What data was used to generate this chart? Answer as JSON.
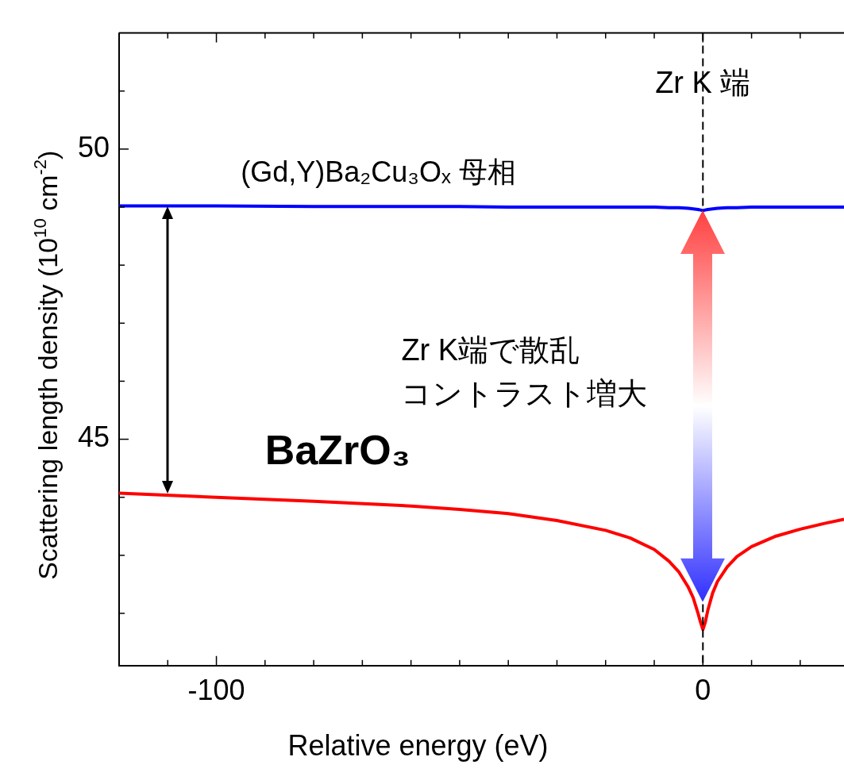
{
  "chart_data": {
    "type": "line",
    "xlabel": "Relative energy (eV)",
    "ylabel": "Scattering length density (10$^{10}$ cm$^{-2}$)",
    "x": [
      -120,
      -100,
      -80,
      -60,
      -50,
      -40,
      -30,
      -20,
      -15,
      -10,
      -7,
      -5,
      -3,
      -2,
      -1,
      -0.5,
      0,
      0.5,
      1,
      2,
      3,
      5,
      7,
      10,
      15,
      20,
      25,
      29
    ],
    "series": [
      {
        "name": "(Gd,Y)Ba₂Cu₃Oₓ 母相",
        "color": "#0000ff",
        "values": [
          49.02,
          49.02,
          49.01,
          49.01,
          49.01,
          49.0,
          49.0,
          49.0,
          49.0,
          49.0,
          48.99,
          48.99,
          48.98,
          48.97,
          48.96,
          48.95,
          48.94,
          48.95,
          48.96,
          48.97,
          48.98,
          48.99,
          48.99,
          49.0,
          49.0,
          49.0,
          49.0,
          49.0
        ]
      },
      {
        "name": "BaZrO₃",
        "color": "#ff0000",
        "values": [
          44.07,
          44.0,
          43.93,
          43.85,
          43.79,
          43.72,
          43.6,
          43.43,
          43.3,
          43.1,
          42.9,
          42.72,
          42.45,
          42.27,
          42.0,
          41.85,
          41.72,
          41.85,
          42.05,
          42.35,
          42.55,
          42.8,
          42.98,
          43.15,
          43.33,
          43.45,
          43.55,
          43.62
        ]
      }
    ],
    "xlim": [
      -120,
      29
    ],
    "ylim": [
      41.1,
      52
    ],
    "xticks": [
      {
        "value": -110,
        "label": null
      },
      -100,
      {
        "value": -90,
        "label": null
      },
      {
        "value": -80,
        "label": null
      },
      {
        "value": -70,
        "label": null
      },
      {
        "value": -60,
        "label": null
      },
      {
        "value": -50,
        "label": null
      },
      {
        "value": -40,
        "label": null
      },
      {
        "value": -30,
        "label": null
      },
      {
        "value": -20,
        "label": null
      },
      {
        "value": -10,
        "label": null
      },
      0,
      {
        "value": 10,
        "label": null
      },
      {
        "value": 20,
        "label": null
      }
    ],
    "yticks": [
      {
        "value": 42,
        "label": null
      },
      {
        "value": 43,
        "label": null
      },
      {
        "value": 44,
        "label": null
      },
      45,
      {
        "value": 46,
        "label": null
      },
      {
        "value": 47,
        "label": null
      },
      {
        "value": 48,
        "label": null
      },
      {
        "value": 49,
        "label": null
      },
      50,
      {
        "value": 51,
        "label": null
      }
    ],
    "ref_lines": [
      {
        "axis": "x",
        "value": 0,
        "label": "Zr K 端",
        "color": "#000000",
        "line_style": "dashed"
      }
    ],
    "annotations": [
      "Zr K端で散乱",
      "コントラスト増大"
    ],
    "grid": false,
    "legend": false,
    "marker": "none",
    "line_style": "solid"
  }
}
